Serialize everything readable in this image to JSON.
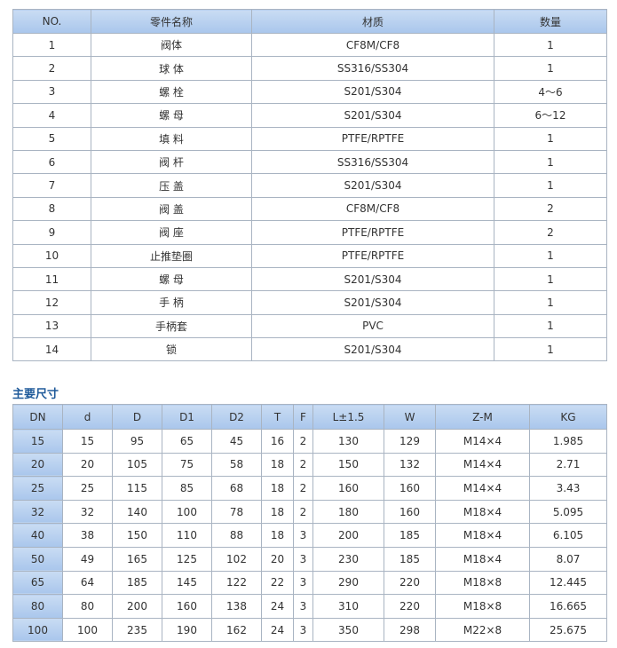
{
  "parts_table": {
    "headers": [
      "NO.",
      "零件名称",
      "材质",
      "数量"
    ],
    "rows": [
      [
        "1",
        "阀体",
        "CF8M/CF8",
        "1"
      ],
      [
        "2",
        "球 体",
        "SS316/SS304",
        "1"
      ],
      [
        "3",
        "螺 栓",
        "S201/S304",
        "4～6"
      ],
      [
        "4",
        "螺 母",
        "S201/S304",
        "6～12"
      ],
      [
        "5",
        "填 料",
        "PTFE/RPTFE",
        "1"
      ],
      [
        "6",
        "阀 杆",
        "SS316/SS304",
        "1"
      ],
      [
        "7",
        "压 盖",
        "S201/S304",
        "1"
      ],
      [
        "8",
        "阀 盖",
        "CF8M/CF8",
        "2"
      ],
      [
        "9",
        "阀 座",
        "PTFE/RPTFE",
        "2"
      ],
      [
        "10",
        "止推垫圈",
        "PTFE/RPTFE",
        "1"
      ],
      [
        "11",
        "螺 母",
        "S201/S304",
        "1"
      ],
      [
        "12",
        "手 柄",
        "S201/S304",
        "1"
      ],
      [
        "13",
        "手柄套",
        "PVC",
        "1"
      ],
      [
        "14",
        "锁",
        "S201/S304",
        "1"
      ]
    ]
  },
  "dims_title": "主要尺寸",
  "dims_table": {
    "headers": [
      "DN",
      "d",
      "D",
      "D1",
      "D2",
      "T",
      "F",
      "L±1.5",
      "W",
      "Z-M",
      "KG"
    ],
    "rows": [
      [
        "15",
        "15",
        "95",
        "65",
        "45",
        "16",
        "2",
        "130",
        "129",
        "M14×4",
        "1.985"
      ],
      [
        "20",
        "20",
        "105",
        "75",
        "58",
        "18",
        "2",
        "150",
        "132",
        "M14×4",
        "2.71"
      ],
      [
        "25",
        "25",
        "115",
        "85",
        "68",
        "18",
        "2",
        "160",
        "160",
        "M14×4",
        "3.43"
      ],
      [
        "32",
        "32",
        "140",
        "100",
        "78",
        "18",
        "2",
        "180",
        "160",
        "M18×4",
        "5.095"
      ],
      [
        "40",
        "38",
        "150",
        "110",
        "88",
        "18",
        "3",
        "200",
        "185",
        "M18×4",
        "6.105"
      ],
      [
        "50",
        "49",
        "165",
        "125",
        "102",
        "20",
        "3",
        "230",
        "185",
        "M18×4",
        "8.07"
      ],
      [
        "65",
        "64",
        "185",
        "145",
        "122",
        "22",
        "3",
        "290",
        "220",
        "M18×8",
        "12.445"
      ],
      [
        "80",
        "80",
        "200",
        "160",
        "138",
        "24",
        "3",
        "310",
        "220",
        "M18×8",
        "16.665"
      ],
      [
        "100",
        "100",
        "235",
        "190",
        "162",
        "24",
        "3",
        "350",
        "298",
        "M22×8",
        "25.675"
      ]
    ]
  }
}
